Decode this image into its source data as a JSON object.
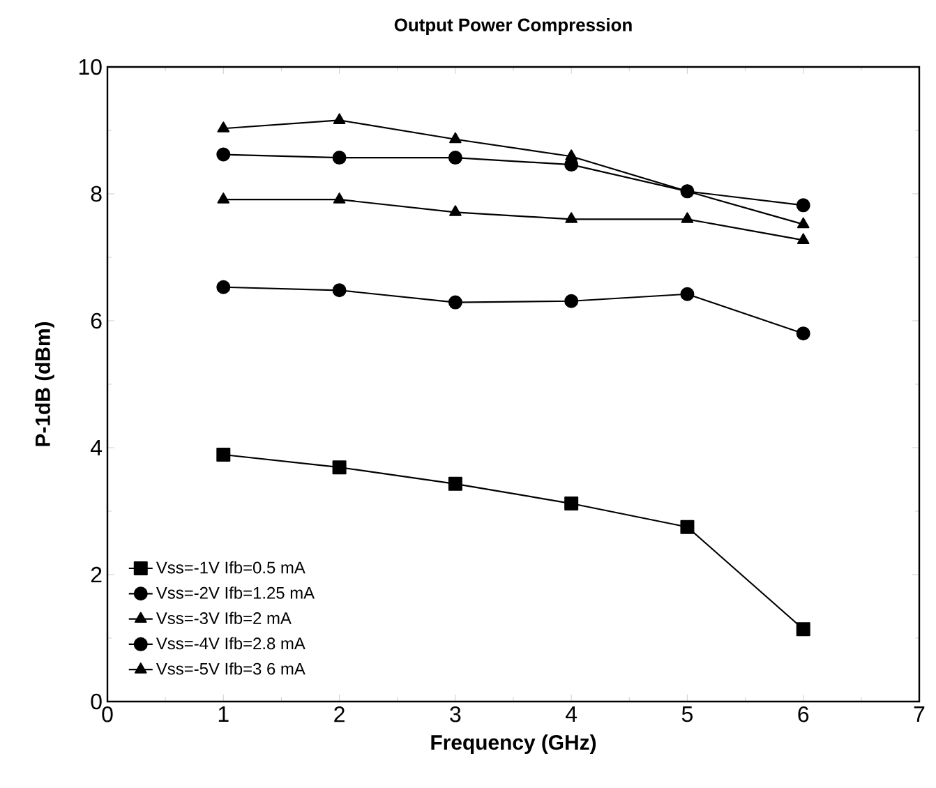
{
  "chart_data": {
    "type": "line",
    "title": "Output Power Compression",
    "xlabel": "Frequency  (GHz)",
    "ylabel": "P-1dB  (dBm)",
    "x": [
      1,
      2,
      3,
      4,
      5,
      6
    ],
    "series": [
      {
        "name": "Vss=-1V Ifb=0.5 mA",
        "color": "#000000",
        "marker": "square",
        "values": [
          3.89,
          3.69,
          3.43,
          3.12,
          2.75,
          1.14
        ]
      },
      {
        "name": "Vss=-2V Ifb=1.25 mA",
        "color": "#000000",
        "marker": "circle",
        "values": [
          6.53,
          6.48,
          6.29,
          6.31,
          6.42,
          5.8
        ]
      },
      {
        "name": "Vss=-3V Ifb=2 mA",
        "color": "#000000",
        "marker": "triangle",
        "values": [
          7.91,
          7.91,
          7.71,
          7.6,
          7.6,
          7.27
        ]
      },
      {
        "name": "Vss=-4V Ifb=2.8 mA",
        "color": "#000000",
        "marker": "circle",
        "values": [
          8.62,
          8.57,
          8.57,
          8.46,
          8.04,
          7.82
        ]
      },
      {
        "name": "Vss=-5V Ifb=3 6 mA",
        "color": "#000000",
        "marker": "triangle",
        "values": [
          9.03,
          9.16,
          8.86,
          8.59,
          8.04,
          7.52
        ]
      }
    ],
    "xlim": [
      0,
      7
    ],
    "xticks": [
      0,
      1,
      2,
      3,
      4,
      5,
      6,
      7
    ],
    "ylim": [
      0,
      10
    ],
    "yticks": [
      0,
      2,
      4,
      6,
      8,
      10
    ],
    "grid": false,
    "legend": "bottom left",
    "line_style": "solid"
  }
}
